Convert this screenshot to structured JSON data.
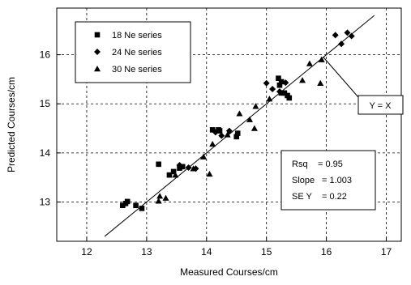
{
  "chart_data": {
    "type": "scatter",
    "xlabel": "Measured Courses/cm",
    "ylabel": "Predicted Courses/cm",
    "xlim": [
      11.5,
      17.25
    ],
    "ylim": [
      12.2,
      16.95
    ],
    "xticks": [
      12,
      13,
      14,
      15,
      16,
      17
    ],
    "yticks": [
      13,
      14,
      15,
      16
    ],
    "grid": "dashed",
    "legend": {
      "placement": "top-left",
      "boxed": true
    },
    "series": [
      {
        "name": "18 Ne series",
        "marker": "square",
        "points": [
          [
            12.6,
            12.93
          ],
          [
            12.65,
            12.97
          ],
          [
            12.68,
            13.01
          ],
          [
            12.82,
            12.93
          ],
          [
            12.92,
            12.87
          ],
          [
            13.2,
            13.77
          ],
          [
            13.38,
            13.55
          ],
          [
            13.45,
            13.62
          ],
          [
            13.55,
            13.69
          ],
          [
            13.6,
            13.72
          ],
          [
            14.1,
            14.47
          ],
          [
            14.2,
            14.47
          ],
          [
            14.22,
            14.45
          ],
          [
            14.5,
            14.33
          ],
          [
            14.52,
            14.4
          ],
          [
            15.2,
            15.52
          ],
          [
            15.22,
            15.38
          ],
          [
            15.25,
            15.45
          ],
          [
            15.3,
            15.22
          ],
          [
            15.35,
            15.17
          ],
          [
            15.38,
            15.12
          ]
        ]
      },
      {
        "name": "24 Ne series",
        "marker": "diamond",
        "points": [
          [
            13.55,
            13.75
          ],
          [
            13.7,
            13.7
          ],
          [
            13.82,
            13.68
          ],
          [
            14.15,
            14.42
          ],
          [
            14.25,
            14.35
          ],
          [
            14.38,
            14.45
          ],
          [
            15.0,
            15.42
          ],
          [
            15.1,
            15.3
          ],
          [
            15.22,
            15.25
          ],
          [
            15.32,
            15.43
          ],
          [
            16.15,
            16.4
          ],
          [
            16.25,
            16.22
          ],
          [
            16.35,
            16.45
          ],
          [
            16.42,
            16.38
          ]
        ]
      },
      {
        "name": "30 Ne series",
        "marker": "triangle",
        "points": [
          [
            13.2,
            13.02
          ],
          [
            13.22,
            13.12
          ],
          [
            13.32,
            13.08
          ],
          [
            13.48,
            13.55
          ],
          [
            13.78,
            13.68
          ],
          [
            13.95,
            13.92
          ],
          [
            14.05,
            13.57
          ],
          [
            14.1,
            14.18
          ],
          [
            14.35,
            14.37
          ],
          [
            14.55,
            14.8
          ],
          [
            14.72,
            14.68
          ],
          [
            14.8,
            14.5
          ],
          [
            14.82,
            14.95
          ],
          [
            15.05,
            15.1
          ],
          [
            15.25,
            15.22
          ],
          [
            15.6,
            15.48
          ],
          [
            15.72,
            15.82
          ],
          [
            15.9,
            15.42
          ],
          [
            15.92,
            15.9
          ]
        ]
      }
    ],
    "fit_line": {
      "x": [
        12.3,
        16.8
      ],
      "y": [
        12.3,
        16.8
      ]
    },
    "annotations": {
      "line_label": "Y = X",
      "stats": [
        {
          "label": "Rsq",
          "value": "= 0.95"
        },
        {
          "label": "Slope",
          "value": "= 1.003"
        },
        {
          "label": "SE  Y",
          "value": "= 0.22"
        }
      ]
    }
  }
}
